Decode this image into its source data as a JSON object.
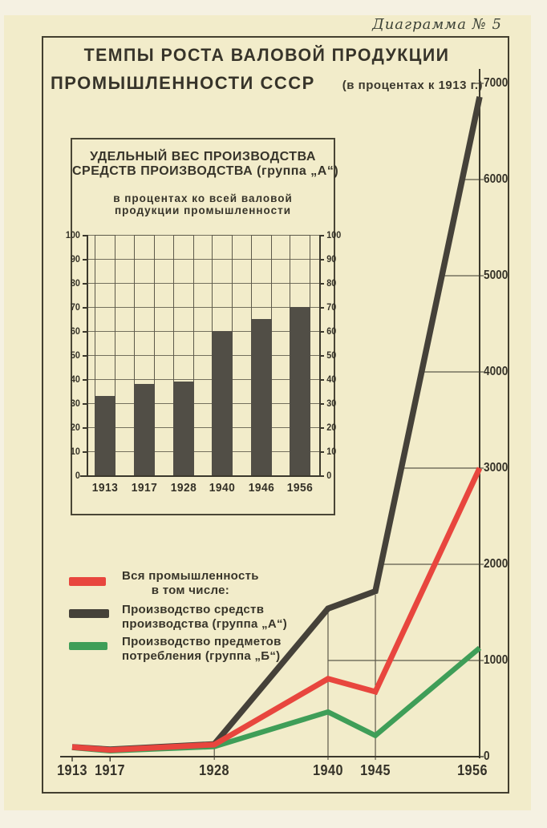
{
  "caption": "Диаграмма № 5",
  "title": {
    "line1": "ТЕМПЫ РОСТА ВАЛОВОЙ ПРОДУКЦИИ",
    "line2": "ПРОМЫШЛЕННОСТИ СССР",
    "subtitle": "(в процентах к 1913 г.)"
  },
  "colors": {
    "paper": "#f2ecca",
    "ink": "#3b382c",
    "red": "#e8463e",
    "dark": "#454139",
    "green": "#3f9e58",
    "bar_fill": "#514e46",
    "grid": "#5d594a"
  },
  "legend": {
    "items": [
      {
        "color_key": "red",
        "line1": "Вся промышленность",
        "line2": "в том числе:"
      },
      {
        "color_key": "dark",
        "line1": "Производство средств",
        "line2": "производства (группа „А“)"
      },
      {
        "color_key": "green",
        "line1": "Производство предметов",
        "line2": "потребления  (группа „Б“)"
      }
    ]
  },
  "chart_data": [
    {
      "type": "line",
      "title": "ТЕМПЫ РОСТА ВАЛОВОЙ ПРОДУКЦИИ ПРОМЫШЛЕННОСТИ СССР (в процентах к 1913 г.)",
      "xlabel": "",
      "ylabel": "проценты к 1913 г.",
      "x": [
        1913,
        1917,
        1928,
        1940,
        1945,
        1956
      ],
      "x_tick_labels": [
        "1913",
        "1917",
        "1928",
        "1940",
        "1945",
        "1956"
      ],
      "y_ticks": [
        0,
        1000,
        2000,
        3000,
        4000,
        5000,
        6000,
        7000
      ],
      "ylim": [
        0,
        7000
      ],
      "grid": "partial",
      "legend_position": "middle-left",
      "series": [
        {
          "name": "Вся промышленность",
          "color_key": "red",
          "values": [
            100,
            70,
            125,
            810,
            675,
            3000
          ]
        },
        {
          "name": "Производство средств производства (группа „А“)",
          "color_key": "dark",
          "values": [
            100,
            75,
            130,
            1540,
            1720,
            6860
          ]
        },
        {
          "name": "Производство предметов потребления (группа „Б“)",
          "color_key": "green",
          "values": [
            95,
            60,
            105,
            465,
            220,
            1130
          ]
        }
      ]
    },
    {
      "type": "bar",
      "title": "УДЕЛЬНЫЙ ВЕС ПРОИЗВОДСТВА СРЕДСТВ ПРОИЗВОДСТВА (группа „А“)",
      "subtitle": "в процентах ко всей валовой продукции промышленности",
      "categories": [
        "1913",
        "1917",
        "1928",
        "1940",
        "1946",
        "1956"
      ],
      "values": [
        33,
        38,
        39,
        60,
        65,
        70
      ],
      "ylim": [
        0,
        100
      ],
      "y_ticks": [
        0,
        10,
        20,
        30,
        40,
        50,
        60,
        70,
        80,
        90,
        100
      ],
      "grid": true
    }
  ],
  "inset_title": {
    "line1": "УДЕЛЬНЫЙ ВЕС ПРОИЗВОДСТВА",
    "line2": "СРЕДСТВ ПРОИЗВОДСТВА (группа „А“)",
    "sub1": "в процентах ко всей валовой",
    "sub2": "продукции промышленности"
  }
}
